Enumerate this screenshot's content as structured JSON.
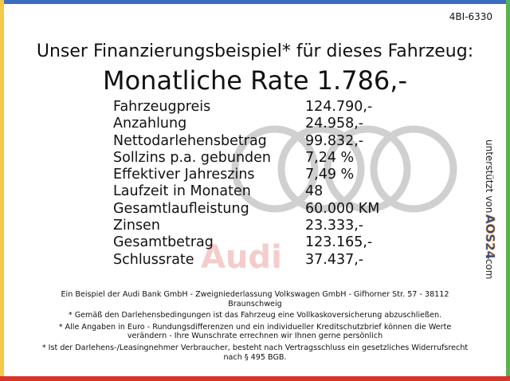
{
  "header": {
    "code": "4BI-6330",
    "title": "Unser Finanzierungsbeispiel* für dieses Fahrzeug:",
    "rate": "Monatliche Rate 1.786,-"
  },
  "table": {
    "rows": [
      [
        "Fahrzeugpreis",
        "124.790,-"
      ],
      [
        "Anzahlung",
        "24.958,-"
      ],
      [
        "Nettodarlehensbetrag",
        "99.832,-"
      ],
      [
        "Sollzins p.a. gebunden",
        "7,24 %"
      ],
      [
        "Effektiver Jahreszins",
        "7,49 %"
      ],
      [
        "Laufzeit in Monaten",
        "48"
      ],
      [
        "Gesamtlaufleistung",
        "60.000 KM"
      ],
      [
        "Zinsen",
        "23.333,-"
      ],
      [
        "Gesamtbetrag",
        "123.165,-"
      ],
      [
        "Schlussrate",
        "37.437,-"
      ]
    ]
  },
  "watermark": "Audi",
  "side": {
    "text": "unterstützt von",
    "logo": "AOS24",
    "suffix": ".com"
  },
  "footnotes": [
    "Ein Beispiel der Audi Bank GmbH - Zweigniederlassung Volkswagen GmbH - Gifhorner Str. 57 - 38112 Braunschweig",
    "* Gemäß den Darlehensbedingungen ist das Fahrzeug eine Vollkaskoversicherung abzuschließen.",
    "* Alle Angaben in Euro - Rundungsdifferenzen und ein individueller Kreditschutzbrief können die Werte verändern - Ihre Wunschrate errechnen wir Ihnen gerne persönlich",
    "* Ist der Darlehens-/Leasingnehmer Verbraucher, besteht nach Vertragsschluss ein gesetzliches Widerrufsrecht nach § 495 BGB."
  ]
}
